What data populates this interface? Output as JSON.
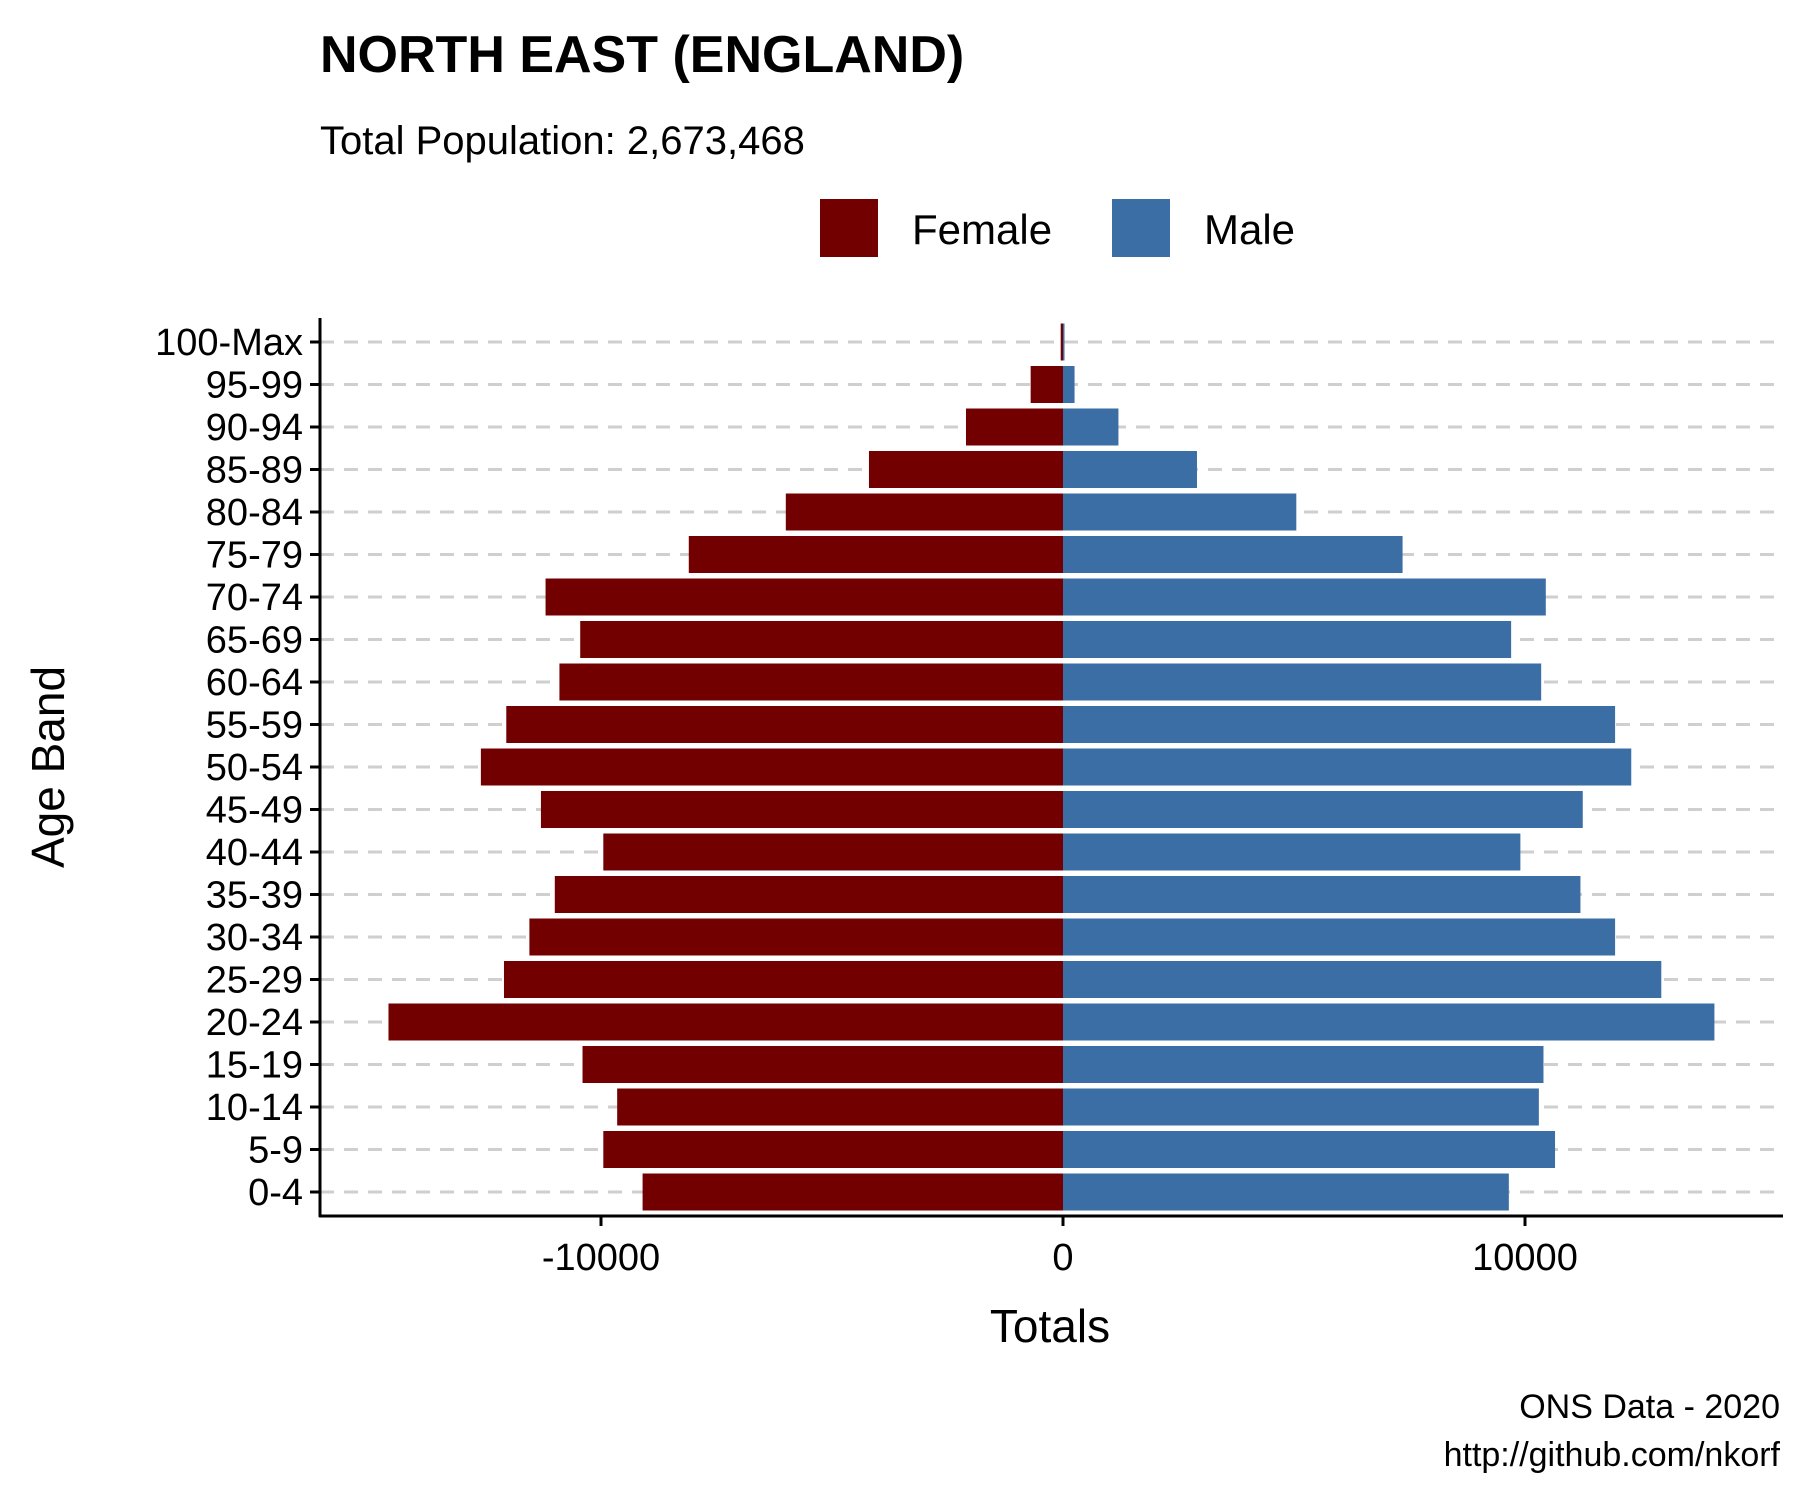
{
  "chart_data": {
    "type": "bar",
    "orientation": "horizontal",
    "title": "NORTH EAST (ENGLAND)",
    "subtitle": "Total Population:  2,673,468",
    "xlabel": "Totals",
    "ylabel": "Age Band",
    "caption": [
      "ONS Data - 2020",
      "http://github.com/nkorf"
    ],
    "legend_position": "top",
    "grid": "horizontal-dashed",
    "xlim": [
      -16000,
      15500
    ],
    "x_ticks": [
      -10000,
      0,
      10000
    ],
    "categories": [
      "0-4",
      "5-9",
      "10-14",
      "15-19",
      "20-24",
      "25-29",
      "30-34",
      "35-39",
      "40-44",
      "45-49",
      "50-54",
      "55-59",
      "60-64",
      "65-69",
      "70-74",
      "75-79",
      "80-84",
      "85-89",
      "90-94",
      "95-99",
      "100-Max"
    ],
    "series": [
      {
        "name": "Female",
        "color": "#730000",
        "values": [
          -9100,
          -9950,
          -9650,
          -10400,
          -14600,
          -12100,
          -11550,
          -11000,
          -9950,
          -11300,
          -12600,
          -12050,
          -10900,
          -10450,
          -11200,
          -8100,
          -6000,
          -4200,
          -2100,
          -700,
          -50
        ]
      },
      {
        "name": "Male",
        "color": "#3a6ea5",
        "values": [
          9650,
          10650,
          10300,
          10400,
          14100,
          12950,
          11950,
          11200,
          9900,
          11250,
          12300,
          11950,
          10350,
          9700,
          10450,
          7350,
          5050,
          2900,
          1200,
          250,
          30
        ]
      }
    ]
  }
}
